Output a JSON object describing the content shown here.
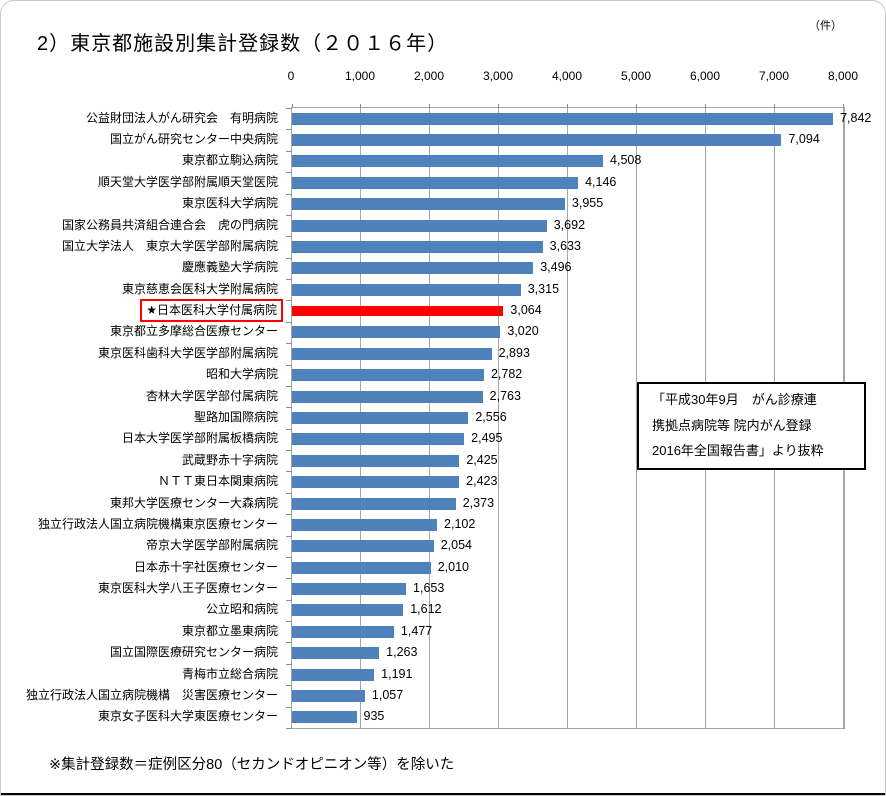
{
  "title": "2）東京都施設別集計登録数（２０１６年）",
  "footnote": "※集計登録数＝症例区分80（セカンドオピニオン等）を除いた",
  "annotation": {
    "line1": "「平成30年9月　がん診療連",
    "line2": "携拠点病院等 院内がん登録",
    "line3": "2016年全国報告書」より抜粋"
  },
  "chart_data": {
    "type": "bar",
    "orientation": "horizontal",
    "title": "2）東京都施設別集計登録数（２０１６年）",
    "unit": "（件）",
    "xlim": [
      0,
      8000
    ],
    "x_ticks": [
      0,
      1000,
      2000,
      3000,
      4000,
      5000,
      6000,
      7000,
      8000
    ],
    "x_tick_labels": [
      "0",
      "1,000",
      "2,000",
      "3,000",
      "4,000",
      "5,000",
      "6,000",
      "7,000",
      "8,000"
    ],
    "grid": true,
    "legend": "none",
    "bar_color": "#4f81bd",
    "highlight_color": "#ff0000",
    "highlight_index": 9,
    "categories": [
      "公益財団法人がん研究会　有明病院",
      "国立がん研究センター中央病院",
      "東京都立駒込病院",
      "順天堂大学医学部附属順天堂医院",
      "東京医科大学病院",
      "国家公務員共済組合連合会　虎の門病院",
      "国立大学法人　東京大学医学部附属病院",
      "慶應義塾大学病院",
      "東京慈恵会医科大学附属病院",
      "★日本医科大学付属病院",
      "東京都立多摩総合医療センター",
      "東京医科歯科大学医学部附属病院",
      "昭和大学病院",
      "杏林大学医学部付属病院",
      "聖路加国際病院",
      "日本大学医学部附属板橋病院",
      "武蔵野赤十字病院",
      "ＮＴＴ東日本関東病院",
      "東邦大学医療センター大森病院",
      "独立行政法人国立病院機構東京医療センター",
      "帝京大学医学部附属病院",
      "日本赤十字社医療センター",
      "東京医科大学八王子医療センター",
      "公立昭和病院",
      "東京都立墨東病院",
      "国立国際医療研究センター病院",
      "青梅市立総合病院",
      "独立行政法人国立病院機構　災害医療センター",
      "東京女子医科大学東医療センター"
    ],
    "values": [
      7842,
      7094,
      4508,
      4146,
      3955,
      3692,
      3633,
      3496,
      3315,
      3064,
      3020,
      2893,
      2782,
      2763,
      2556,
      2495,
      2425,
      2423,
      2373,
      2102,
      2054,
      2010,
      1653,
      1612,
      1477,
      1263,
      1191,
      1057,
      935
    ],
    "value_labels": [
      "7,842",
      "7,094",
      "4,508",
      "4,146",
      "3,955",
      "3,692",
      "3,633",
      "3,496",
      "3,315",
      "3,064",
      "3,020",
      "2,893",
      "2,782",
      "2,763",
      "2,556",
      "2,495",
      "2,425",
      "2,423",
      "2,373",
      "2,102",
      "2,054",
      "2,010",
      "1,653",
      "1,612",
      "1,477",
      "1,263",
      "1,191",
      "1,057",
      "935"
    ]
  }
}
